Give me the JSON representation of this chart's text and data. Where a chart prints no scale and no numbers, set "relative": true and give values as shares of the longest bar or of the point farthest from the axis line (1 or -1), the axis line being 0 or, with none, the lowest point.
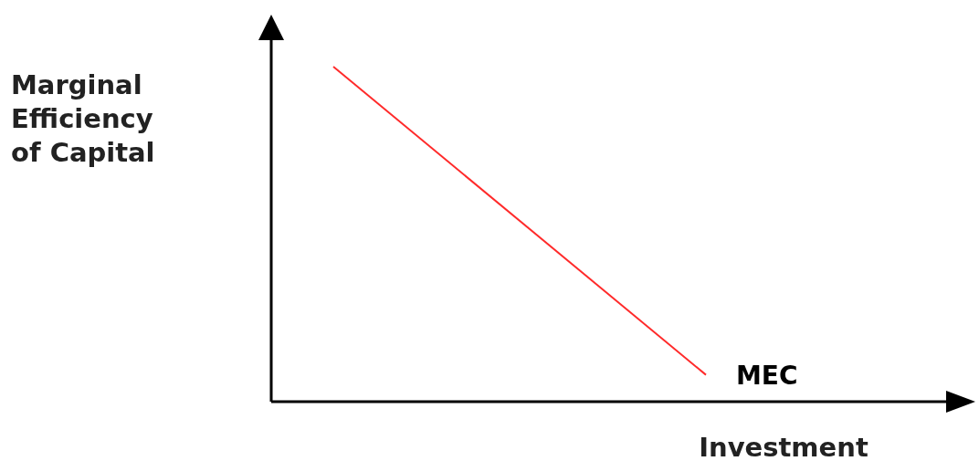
{
  "chart_data": {
    "type": "line",
    "relative": true,
    "ylabel": "Marginal Efficiency of Capital",
    "xlabel": "Investment",
    "categories": [
      null,
      null,
      null,
      null,
      null,
      null,
      null,
      null,
      null,
      null,
      null,
      null
    ],
    "series": [
      {
        "name": "MEC",
        "color": "#ff2a2a",
        "values": [
          null,
          1,
          null,
          null,
          null,
          null,
          null,
          0.08,
          null,
          null,
          null,
          null
        ]
      }
    ],
    "marker": "none",
    "line_style": "solid"
  }
}
